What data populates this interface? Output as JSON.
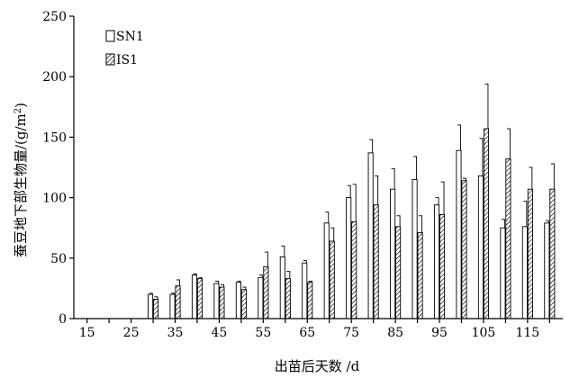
{
  "chart_data": {
    "type": "bar",
    "title": "",
    "xlabel": "出苗后天数 /d",
    "ylabel": "蚕豆地下部生物量/(g/m²)",
    "ylabel_prefix": "蚕豆地下部生物量/(g/m",
    "ylabel_sup": "2",
    "ylabel_suffix": ")",
    "ylim": [
      0,
      250
    ],
    "yticks": [
      0,
      50,
      100,
      150,
      200,
      250
    ],
    "xlim": [
      12,
      123
    ],
    "xticks": [
      15,
      25,
      35,
      45,
      55,
      65,
      75,
      85,
      95,
      105,
      115
    ],
    "legend_position": "top-left",
    "categories": [
      15,
      20,
      25,
      30,
      35,
      40,
      45,
      50,
      55,
      60,
      65,
      70,
      75,
      80,
      85,
      90,
      95,
      100,
      105,
      110,
      115,
      120
    ],
    "series": [
      {
        "name": "SN1",
        "fill": "white",
        "values": [
          0,
          0,
          0,
          20,
          20,
          36,
          29,
          30,
          34,
          51,
          46,
          79,
          100,
          137,
          107,
          115,
          94,
          139,
          118,
          75,
          76,
          79
        ],
        "errors": [
          0,
          0,
          0,
          1,
          1,
          1,
          2,
          1,
          2,
          9,
          2,
          9,
          10,
          11,
          17,
          19,
          6,
          21,
          31,
          7,
          21,
          2
        ]
      },
      {
        "name": "IS1",
        "fill": "hatched",
        "values": [
          0,
          0,
          0,
          16,
          27,
          33,
          26,
          24,
          43,
          33,
          30,
          64,
          80,
          94,
          76,
          71,
          86,
          114,
          157,
          132,
          107,
          107
        ],
        "errors": [
          0,
          0,
          0,
          2,
          5,
          1,
          2,
          2,
          12,
          6,
          1,
          11,
          31,
          24,
          9,
          14,
          27,
          2,
          37,
          25,
          18,
          21
        ]
      }
    ]
  }
}
